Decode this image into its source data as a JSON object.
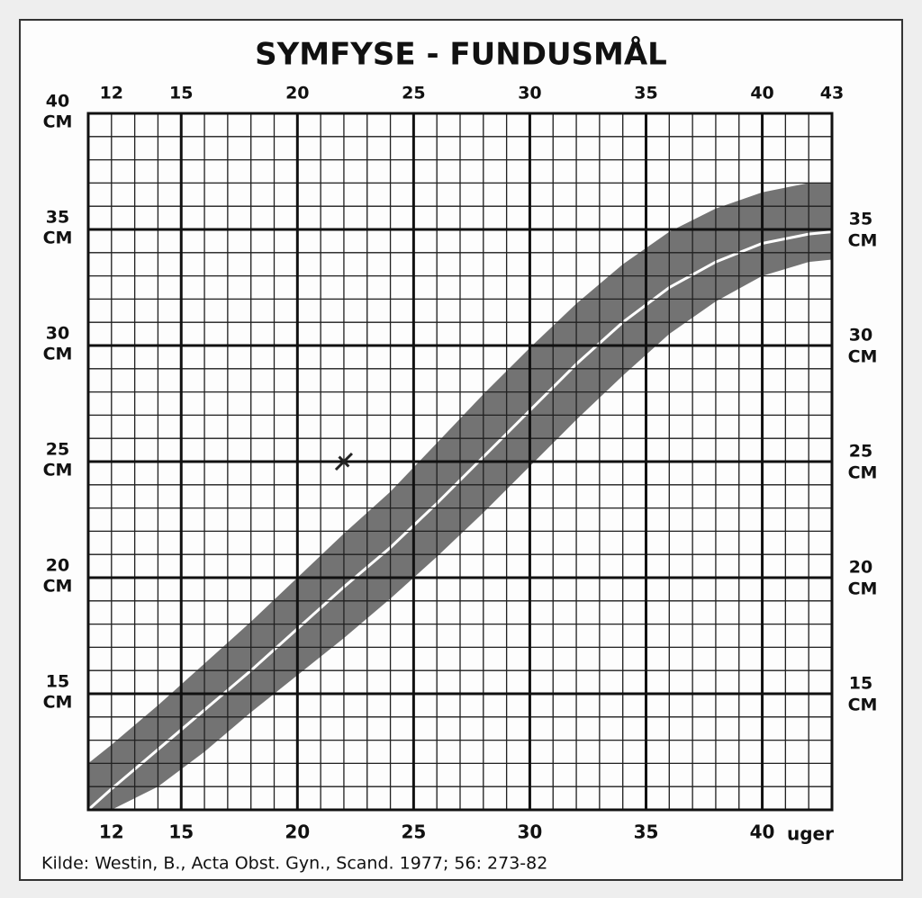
{
  "chart_data": {
    "type": "growth-band",
    "title": "SYMFYSE - FUNDUSMÅL",
    "x_label": "uger",
    "y_unit": "CM",
    "source": "Kilde: Westin, B., Acta Obst. Gyn., Scand. 1977; 56: 273-82",
    "xlim": [
      11,
      43
    ],
    "ylim": [
      10,
      40
    ],
    "xticks": [
      12,
      15,
      20,
      25,
      30,
      35,
      40,
      43
    ],
    "xticks_bottom": [
      12,
      15,
      20,
      25,
      30,
      35,
      40
    ],
    "yticks": [
      15,
      20,
      25,
      30,
      35,
      40
    ],
    "yticks_right": [
      15,
      20,
      25,
      30,
      35
    ],
    "major_x": [
      15,
      20,
      25,
      30,
      35,
      40
    ],
    "major_y": [
      15,
      20,
      25,
      30,
      35
    ],
    "grid": true,
    "x": [
      11,
      12,
      14,
      16,
      18,
      20,
      22,
      24,
      26,
      28,
      30,
      32,
      34,
      36,
      38,
      40,
      42,
      43
    ],
    "median": {
      "color": "#ffffff",
      "values": [
        10.0,
        10.9,
        12.6,
        14.3,
        16.0,
        17.8,
        19.6,
        21.3,
        23.2,
        25.2,
        27.2,
        29.2,
        31.0,
        32.5,
        33.6,
        34.4,
        34.8,
        34.9
      ]
    },
    "band": {
      "color": "#5a5a5a",
      "upper": [
        12.0,
        12.8,
        14.5,
        16.3,
        18.1,
        20.0,
        21.9,
        23.7,
        25.8,
        27.9,
        29.9,
        31.8,
        33.5,
        34.9,
        35.9,
        36.6,
        37.0,
        37.0
      ],
      "lower": [
        10.0,
        10.0,
        11.0,
        12.5,
        14.2,
        15.8,
        17.4,
        19.1,
        20.9,
        22.8,
        24.8,
        26.8,
        28.7,
        30.5,
        31.9,
        33.0,
        33.6,
        33.7
      ]
    },
    "points": {
      "color": "#222222",
      "x": [
        22
      ],
      "y": [
        25
      ]
    }
  }
}
